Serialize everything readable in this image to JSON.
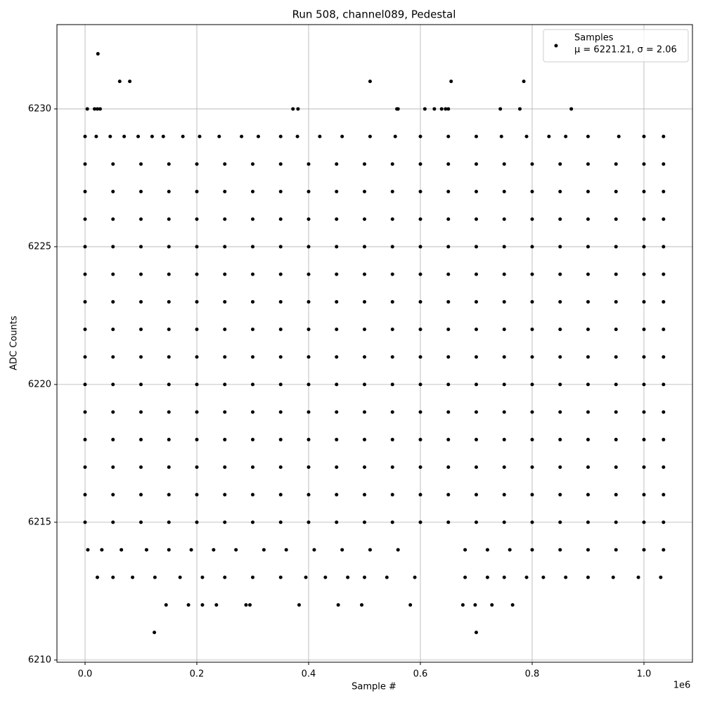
{
  "chart_data": {
    "type": "scatter",
    "title": "Run 508, channel089, Pedestal",
    "xlabel": "Sample #",
    "ylabel": "ADC Counts",
    "x_offset_label": "1e6",
    "xlim": [
      -50300,
      1086800
    ],
    "ylim": [
      6209.92,
      6233.06
    ],
    "xticks": [
      {
        "value": 0,
        "label": "0.0"
      },
      {
        "value": 200000,
        "label": "0.2"
      },
      {
        "value": 400000,
        "label": "0.4"
      },
      {
        "value": 600000,
        "label": "0.6"
      },
      {
        "value": 800000,
        "label": "0.8"
      },
      {
        "value": 1000000,
        "label": "1.0"
      }
    ],
    "yticks": [
      6210,
      6215,
      6220,
      6225,
      6230
    ],
    "grid": true,
    "legend": "upper right",
    "legend_note": "μ = 6221.21, σ = 2.06",
    "series": [
      {
        "name": "Samples",
        "color": "#000000",
        "x": [
          0,
          50000,
          100000,
          150000,
          200000,
          250000,
          300000,
          350000,
          400000,
          450000,
          500000,
          550000,
          600000,
          650000,
          700000,
          750000,
          800000,
          850000,
          900000,
          950000,
          1000000,
          1035000,
          0,
          50000,
          100000,
          150000,
          200000,
          250000,
          300000,
          350000,
          400000,
          450000,
          500000,
          550000,
          600000,
          650000,
          700000,
          750000,
          800000,
          850000,
          900000,
          950000,
          1000000,
          1035000,
          0,
          50000,
          100000,
          150000,
          200000,
          250000,
          300000,
          350000,
          400000,
          450000,
          500000,
          550000,
          600000,
          650000,
          700000,
          750000,
          800000,
          850000,
          900000,
          950000,
          1000000,
          1035000,
          0,
          50000,
          100000,
          150000,
          200000,
          250000,
          300000,
          350000,
          400000,
          450000,
          500000,
          550000,
          600000,
          650000,
          700000,
          750000,
          800000,
          850000,
          900000,
          950000,
          1000000,
          1035000,
          0,
          50000,
          100000,
          150000,
          200000,
          250000,
          300000,
          350000,
          400000,
          450000,
          500000,
          550000,
          600000,
          650000,
          700000,
          750000,
          800000,
          850000,
          900000,
          950000,
          1000000,
          1035000,
          0,
          50000,
          100000,
          150000,
          200000,
          250000,
          300000,
          350000,
          400000,
          450000,
          500000,
          550000,
          600000,
          650000,
          700000,
          750000,
          800000,
          850000,
          900000,
          950000,
          1000000,
          1035000,
          0,
          50000,
          100000,
          150000,
          200000,
          250000,
          300000,
          350000,
          400000,
          450000,
          500000,
          550000,
          600000,
          650000,
          700000,
          750000,
          800000,
          850000,
          900000,
          950000,
          1000000,
          1035000,
          0,
          50000,
          100000,
          150000,
          200000,
          250000,
          300000,
          350000,
          400000,
          450000,
          500000,
          550000,
          600000,
          650000,
          700000,
          750000,
          800000,
          850000,
          900000,
          950000,
          1000000,
          1035000,
          0,
          50000,
          100000,
          150000,
          200000,
          250000,
          300000,
          350000,
          400000,
          450000,
          500000,
          550000,
          600000,
          650000,
          700000,
          750000,
          800000,
          850000,
          900000,
          950000,
          1000000,
          1035000,
          0,
          50000,
          100000,
          150000,
          200000,
          250000,
          300000,
          350000,
          400000,
          450000,
          500000,
          550000,
          600000,
          650000,
          700000,
          750000,
          800000,
          850000,
          900000,
          950000,
          1000000,
          1035000,
          0,
          50000,
          100000,
          150000,
          200000,
          250000,
          300000,
          350000,
          400000,
          450000,
          500000,
          550000,
          600000,
          650000,
          700000,
          750000,
          800000,
          850000,
          900000,
          950000,
          1000000,
          1035000,
          0,
          50000,
          100000,
          150000,
          200000,
          250000,
          300000,
          350000,
          400000,
          450000,
          500000,
          550000,
          600000,
          650000,
          700000,
          750000,
          800000,
          850000,
          900000,
          950000,
          1000000,
          1035000,
          0,
          50000,
          100000,
          150000,
          200000,
          250000,
          300000,
          350000,
          400000,
          450000,
          500000,
          550000,
          600000,
          650000,
          700000,
          750000,
          800000,
          850000,
          900000,
          950000,
          1000000,
          1035000,
          0,
          50000,
          100000,
          150000,
          200000,
          250000,
          300000,
          350000,
          400000,
          450000,
          500000,
          550000,
          600000,
          650000,
          700000,
          750000,
          800000,
          850000,
          900000,
          950000,
          1000000,
          1035000,
          0,
          20000,
          45000,
          70000,
          95000,
          120000,
          140000,
          175000,
          205000,
          240000,
          280000,
          310000,
          350000,
          380000,
          420000,
          460000,
          510000,
          555000,
          600000,
          650000,
          700000,
          745000,
          790000,
          830000,
          860000,
          900000,
          955000,
          1000000,
          1035000,
          4000,
          17000,
          22000,
          27000,
          372000,
          381000,
          558000,
          560000,
          608000,
          625000,
          638000,
          645000,
          650000,
          743000,
          778000,
          870000,
          62000,
          80000,
          510000,
          655000,
          785000,
          23000,
          5000,
          30000,
          65000,
          110000,
          150000,
          190000,
          230000,
          270000,
          320000,
          360000,
          410000,
          460000,
          510000,
          560000,
          680000,
          720000,
          760000,
          800000,
          850000,
          900000,
          950000,
          1000000,
          1035000,
          22000,
          50000,
          85000,
          125000,
          170000,
          210000,
          250000,
          300000,
          350000,
          395000,
          430000,
          470000,
          500000,
          540000,
          590000,
          680000,
          720000,
          750000,
          790000,
          820000,
          860000,
          900000,
          945000,
          990000,
          1030000,
          145000,
          185000,
          210000,
          235000,
          288000,
          295000,
          383000,
          453000,
          495000,
          582000,
          676000,
          698000,
          728000,
          765000,
          124000,
          700000
        ],
        "values": [
          6215,
          6215,
          6215,
          6215,
          6215,
          6215,
          6215,
          6215,
          6215,
          6215,
          6215,
          6215,
          6215,
          6215,
          6215,
          6215,
          6215,
          6215,
          6215,
          6215,
          6215,
          6215,
          6216,
          6216,
          6216,
          6216,
          6216,
          6216,
          6216,
          6216,
          6216,
          6216,
          6216,
          6216,
          6216,
          6216,
          6216,
          6216,
          6216,
          6216,
          6216,
          6216,
          6216,
          6216,
          6217,
          6217,
          6217,
          6217,
          6217,
          6217,
          6217,
          6217,
          6217,
          6217,
          6217,
          6217,
          6217,
          6217,
          6217,
          6217,
          6217,
          6217,
          6217,
          6217,
          6217,
          6217,
          6218,
          6218,
          6218,
          6218,
          6218,
          6218,
          6218,
          6218,
          6218,
          6218,
          6218,
          6218,
          6218,
          6218,
          6218,
          6218,
          6218,
          6218,
          6218,
          6218,
          6218,
          6218,
          6219,
          6219,
          6219,
          6219,
          6219,
          6219,
          6219,
          6219,
          6219,
          6219,
          6219,
          6219,
          6219,
          6219,
          6219,
          6219,
          6219,
          6219,
          6219,
          6219,
          6219,
          6219,
          6220,
          6220,
          6220,
          6220,
          6220,
          6220,
          6220,
          6220,
          6220,
          6220,
          6220,
          6220,
          6220,
          6220,
          6220,
          6220,
          6220,
          6220,
          6220,
          6220,
          6220,
          6220,
          6221,
          6221,
          6221,
          6221,
          6221,
          6221,
          6221,
          6221,
          6221,
          6221,
          6221,
          6221,
          6221,
          6221,
          6221,
          6221,
          6221,
          6221,
          6221,
          6221,
          6221,
          6221,
          6222,
          6222,
          6222,
          6222,
          6222,
          6222,
          6222,
          6222,
          6222,
          6222,
          6222,
          6222,
          6222,
          6222,
          6222,
          6222,
          6222,
          6222,
          6222,
          6222,
          6222,
          6222,
          6223,
          6223,
          6223,
          6223,
          6223,
          6223,
          6223,
          6223,
          6223,
          6223,
          6223,
          6223,
          6223,
          6223,
          6223,
          6223,
          6223,
          6223,
          6223,
          6223,
          6223,
          6223,
          6224,
          6224,
          6224,
          6224,
          6224,
          6224,
          6224,
          6224,
          6224,
          6224,
          6224,
          6224,
          6224,
          6224,
          6224,
          6224,
          6224,
          6224,
          6224,
          6224,
          6224,
          6224,
          6225,
          6225,
          6225,
          6225,
          6225,
          6225,
          6225,
          6225,
          6225,
          6225,
          6225,
          6225,
          6225,
          6225,
          6225,
          6225,
          6225,
          6225,
          6225,
          6225,
          6225,
          6225,
          6226,
          6226,
          6226,
          6226,
          6226,
          6226,
          6226,
          6226,
          6226,
          6226,
          6226,
          6226,
          6226,
          6226,
          6226,
          6226,
          6226,
          6226,
          6226,
          6226,
          6226,
          6226,
          6227,
          6227,
          6227,
          6227,
          6227,
          6227,
          6227,
          6227,
          6227,
          6227,
          6227,
          6227,
          6227,
          6227,
          6227,
          6227,
          6227,
          6227,
          6227,
          6227,
          6227,
          6227,
          6228,
          6228,
          6228,
          6228,
          6228,
          6228,
          6228,
          6228,
          6228,
          6228,
          6228,
          6228,
          6228,
          6228,
          6228,
          6228,
          6228,
          6228,
          6228,
          6228,
          6228,
          6228,
          6229,
          6229,
          6229,
          6229,
          6229,
          6229,
          6229,
          6229,
          6229,
          6229,
          6229,
          6229,
          6229,
          6229,
          6229,
          6229,
          6229,
          6229,
          6229,
          6229,
          6229,
          6229,
          6229,
          6229,
          6229,
          6229,
          6229,
          6229,
          6229,
          6230,
          6230,
          6230,
          6230,
          6230,
          6230,
          6230,
          6230,
          6230,
          6230,
          6230,
          6230,
          6230,
          6230,
          6230,
          6230,
          6231,
          6231,
          6231,
          6231,
          6231,
          6232,
          6214,
          6214,
          6214,
          6214,
          6214,
          6214,
          6214,
          6214,
          6214,
          6214,
          6214,
          6214,
          6214,
          6214,
          6214,
          6214,
          6214,
          6214,
          6214,
          6214,
          6214,
          6214,
          6214,
          6213,
          6213,
          6213,
          6213,
          6213,
          6213,
          6213,
          6213,
          6213,
          6213,
          6213,
          6213,
          6213,
          6213,
          6213,
          6213,
          6213,
          6213,
          6213,
          6213,
          6213,
          6213,
          6213,
          6213,
          6213,
          6212,
          6212,
          6212,
          6212,
          6212,
          6212,
          6212,
          6212,
          6212,
          6212,
          6212,
          6212,
          6212,
          6212,
          6211,
          6211
        ]
      }
    ]
  }
}
